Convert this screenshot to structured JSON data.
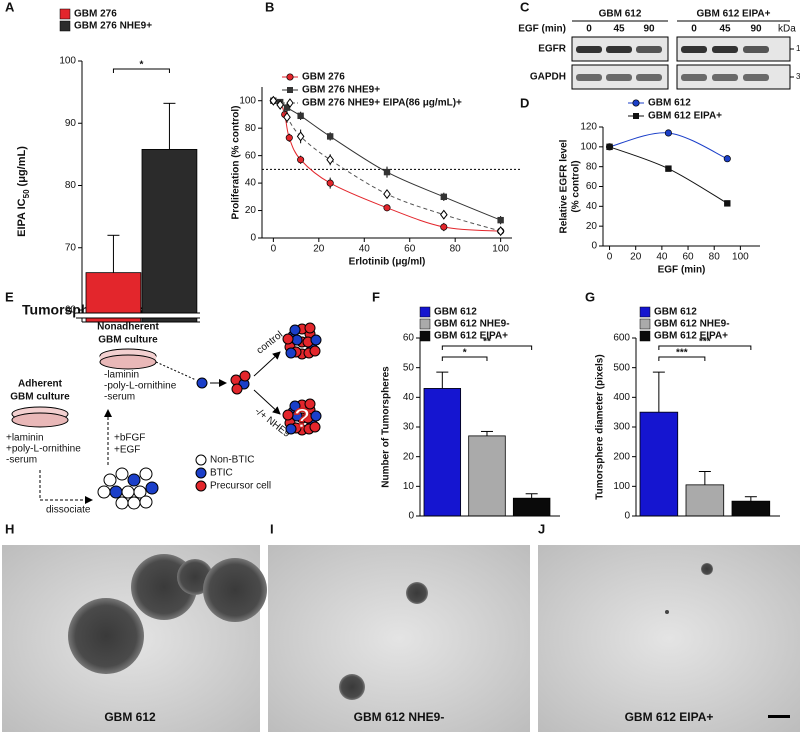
{
  "panel_labels": [
    "A",
    "B",
    "C",
    "D",
    "E",
    "F",
    "G",
    "H",
    "I",
    "J"
  ],
  "chart_data": [
    {
      "type": "bar",
      "y_label": "EIPA  IC",
      "y_label_sub": "50",
      "y_label_unit": "(μg/mL)",
      "ylim": [
        60,
        100
      ],
      "yticks": [
        60,
        70,
        80,
        90,
        100
      ],
      "axis_break": true,
      "series": [
        {
          "name": "GBM 276",
          "color": "#e3262c",
          "values": [
            66
          ],
          "errors": [
            6
          ]
        },
        {
          "name": "GBM 276 NHE9+",
          "color": "#2b2b2b",
          "values": [
            85.8
          ],
          "errors": [
            7.4
          ]
        }
      ],
      "annotations": [
        "*"
      ]
    },
    {
      "type": "line",
      "x_label": "Erlotinib (μg/ml)",
      "y_label": "Proliferation (% control)",
      "xlim": [
        -5,
        105
      ],
      "xticks": [
        0,
        20,
        40,
        60,
        80,
        100
      ],
      "ylim": [
        0,
        110
      ],
      "yticks": [
        0,
        20,
        40,
        60,
        80,
        100
      ],
      "reference_line": 50,
      "series": [
        {
          "name": "GBM 276",
          "color": "#e3262c",
          "marker": "circle",
          "line_style": "solid",
          "x": [
            0,
            3,
            5,
            7,
            12,
            25,
            50,
            75,
            100
          ],
          "values": [
            100,
            98,
            90,
            73,
            57,
            40,
            22,
            8,
            5
          ],
          "errors": [
            2,
            2,
            3,
            3,
            3,
            4,
            2,
            3,
            2
          ]
        },
        {
          "name": "GBM 276 NHE9+",
          "color": "#333333",
          "marker": "square",
          "line_style": "solid",
          "x": [
            0,
            3,
            6,
            12,
            25,
            50,
            75,
            100
          ],
          "values": [
            100,
            99,
            95,
            89,
            74,
            48,
            30,
            13
          ],
          "errors": [
            2,
            2,
            3,
            3,
            3,
            4,
            3,
            3
          ]
        },
        {
          "name": "GBM 276 NHE9+ EIPA(86 μg/mL)+",
          "color": "#555555",
          "marker": "diamond",
          "line_style": "dashed",
          "x": [
            0,
            3,
            6,
            12,
            25,
            50,
            75,
            100
          ],
          "values": [
            100,
            97,
            88,
            74,
            57,
            32,
            17,
            5
          ],
          "errors": [
            2,
            3,
            4,
            5,
            4,
            3,
            2,
            2
          ]
        }
      ]
    },
    {
      "type": "line",
      "x_label": "EGF (min)",
      "y_label": "Relative EGFR level",
      "y_label_2": "(% control)",
      "xlim": [
        -5,
        115
      ],
      "xticks": [
        0,
        20,
        40,
        60,
        80,
        100
      ],
      "ylim": [
        0,
        120
      ],
      "yticks": [
        0,
        20,
        40,
        60,
        80,
        100,
        120
      ],
      "series": [
        {
          "name": "GBM 612",
          "color": "#1b3fc9",
          "marker": "circle",
          "line_style": "solid",
          "x": [
            0,
            45,
            90
          ],
          "values": [
            100,
            114,
            88
          ]
        },
        {
          "name": "GBM 612 EIPA+",
          "color": "#111111",
          "marker": "square",
          "line_style": "solid",
          "x": [
            0,
            45,
            90
          ],
          "values": [
            100,
            78,
            43
          ]
        }
      ]
    },
    {
      "type": "bar",
      "y_label": "Number of Tumorspheres",
      "ylim": [
        0,
        60
      ],
      "yticks": [
        0,
        10,
        20,
        30,
        40,
        50,
        60
      ],
      "series": [
        {
          "name": "GBM 612",
          "color": "#1515d0",
          "values": [
            43
          ],
          "errors": [
            5.5
          ]
        },
        {
          "name": "GBM 612 NHE9-",
          "color": "#aaaaaa",
          "values": [
            27
          ],
          "errors": [
            1.5
          ]
        },
        {
          "name": "GBM 612 EIPA+",
          "color": "#0a0a0a",
          "values": [
            6
          ],
          "errors": [
            1.5
          ]
        }
      ],
      "annotations": [
        "*",
        "**"
      ]
    },
    {
      "type": "bar",
      "y_label": "Tumorsphere diameter (pixels)",
      "ylim": [
        0,
        600
      ],
      "yticks": [
        0,
        100,
        200,
        300,
        400,
        500,
        600
      ],
      "series": [
        {
          "name": "GBM 612",
          "color": "#1515d0",
          "values": [
            350
          ],
          "errors": [
            135
          ]
        },
        {
          "name": "GBM 612 NHE9-",
          "color": "#aaaaaa",
          "values": [
            105
          ],
          "errors": [
            45
          ]
        },
        {
          "name": "GBM 612 EIPA+",
          "color": "#0a0a0a",
          "values": [
            50
          ],
          "errors": [
            15
          ]
        }
      ],
      "annotations": [
        "***",
        "***"
      ]
    }
  ],
  "blot": {
    "groups": [
      "GBM 612",
      "GBM 612 EIPA+"
    ],
    "egf_label": "EGF (min)",
    "lanes": [
      "0",
      "45",
      "90",
      "0",
      "45",
      "90"
    ],
    "unit": "kDa",
    "rows": [
      {
        "name": "EGFR",
        "size": "170"
      },
      {
        "name": "GAPDH",
        "size": "37"
      }
    ]
  },
  "diagram": {
    "title": "Tumorsphere Assay",
    "nonadherent": [
      "Nonadherent",
      "GBM culture"
    ],
    "nonadherent_conditions": [
      "-laminin",
      "-poly-L-ornithine",
      "-serum"
    ],
    "adherent": [
      "Adherent",
      "GBM culture"
    ],
    "adherent_conditions": [
      "+laminin",
      "+poly-L-ornithine",
      "-serum"
    ],
    "factors": [
      "+bFGF",
      "+EGF"
    ],
    "dissociate": "dissociate",
    "control": "control",
    "treatment": "-/+ NHE9",
    "unknown": "?",
    "legend": [
      "Non-BTIC",
      "BTIC",
      "Precursor cell"
    ]
  },
  "micrographs": [
    "GBM 612",
    "GBM 612 NHE9-",
    "GBM 612 EIPA+"
  ]
}
